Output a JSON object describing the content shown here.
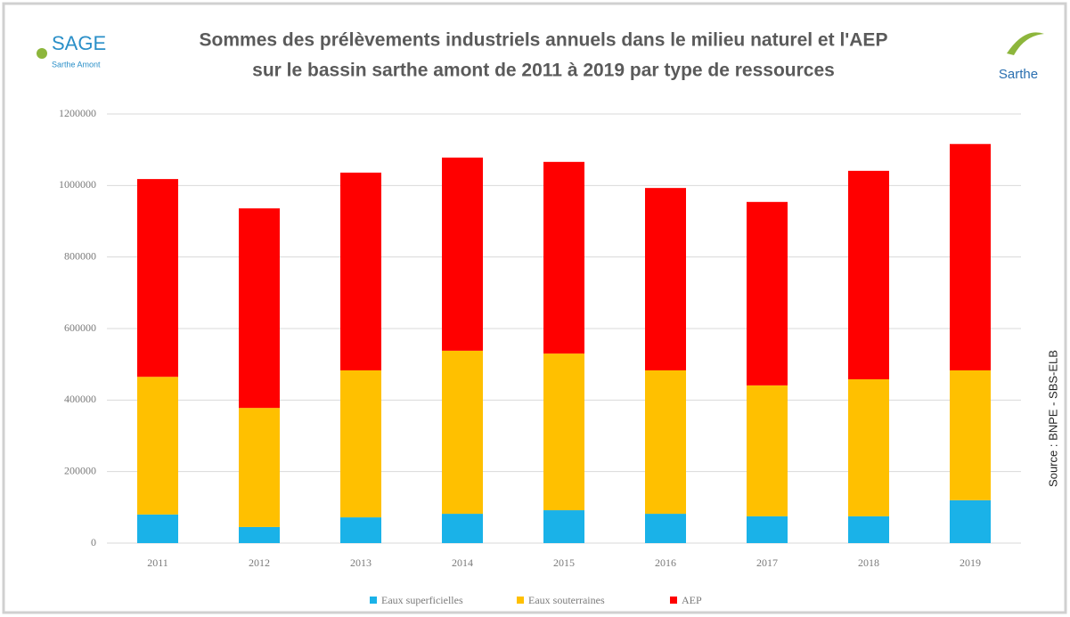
{
  "chart_data": {
    "type": "stacked_bar",
    "title": [
      "Sommes des prélèvements industriels annuels dans le milieu naturel et l'AEP",
      "sur le bassin sarthe amont de 2011 à 2019 par type de ressources"
    ],
    "logo_left": {
      "name": "SAGE",
      "subtitle": "Sarthe Amont"
    },
    "logo_right": "Sarthe",
    "source": "Source : BNPE - SBS-ELB",
    "categories": [
      "2011",
      "2012",
      "2013",
      "2014",
      "2015",
      "2016",
      "2017",
      "2018",
      "2019"
    ],
    "series": [
      {
        "name": "Eaux superficielles",
        "color": "#1ab2e8",
        "values": [
          80000,
          45000,
          72000,
          82000,
          92000,
          82000,
          75000,
          75000,
          120000
        ]
      },
      {
        "name": "Eaux souterraines",
        "color": "#ffc000",
        "values": [
          385000,
          333000,
          411000,
          456000,
          438000,
          401000,
          366000,
          383000,
          363000
        ]
      },
      {
        "name": "AEP",
        "color": "#ff0000",
        "values": [
          553000,
          558000,
          553000,
          540000,
          536000,
          510000,
          513000,
          583000,
          633000
        ]
      }
    ],
    "ylim": [
      0,
      1200000
    ],
    "yticks": [
      0,
      200000,
      400000,
      600000,
      800000,
      1000000,
      1200000
    ],
    "grid": true,
    "legend": "bottom"
  }
}
